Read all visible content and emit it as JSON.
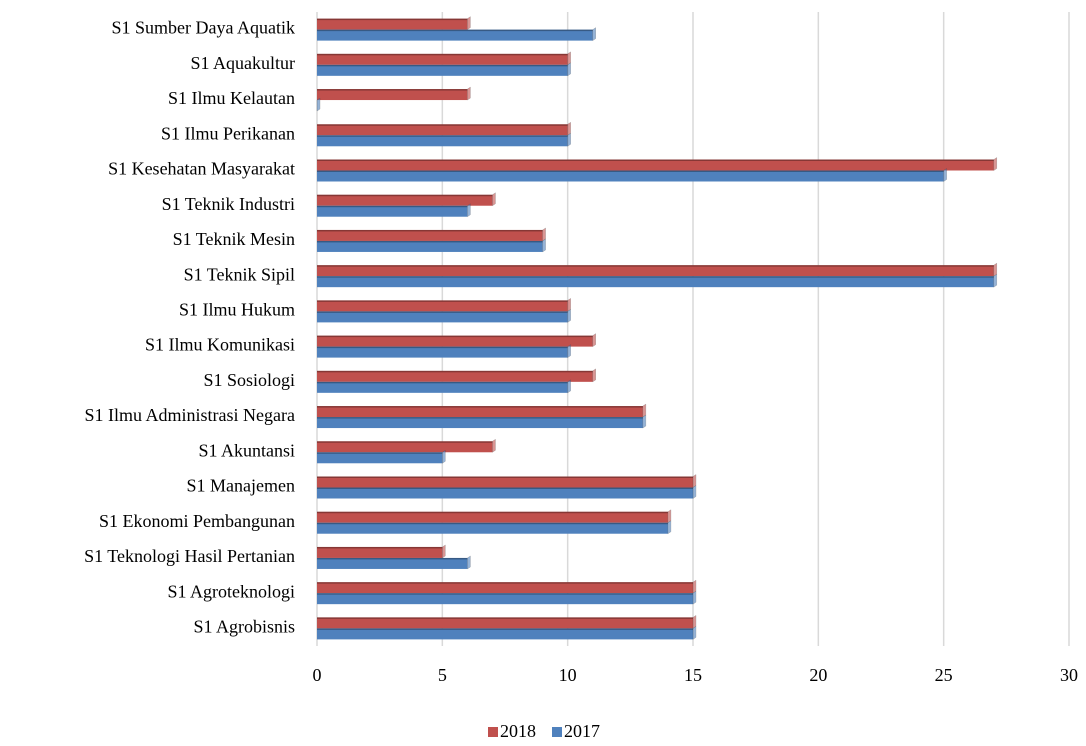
{
  "chart_data": {
    "type": "bar",
    "orientation": "horizontal",
    "categories": [
      "S1 Sumber Daya Aquatik",
      "S1 Aquakultur",
      "S1 Ilmu Kelautan",
      "S1 Ilmu Perikanan",
      "S1 Kesehatan Masyarakat",
      "S1 Teknik Industri",
      "S1 Teknik Mesin",
      "S1 Teknik Sipil",
      "S1 Ilmu Hukum",
      "S1 Ilmu Komunikasi",
      "S1 Sosiologi",
      "S1 Ilmu Administrasi Negara",
      "S1 Akuntansi",
      "S1 Manajemen",
      "S1 Ekonomi Pembangunan",
      "S1 Teknologi Hasil Pertanian",
      "S1 Agroteknologi",
      "S1 Agrobisnis"
    ],
    "series": [
      {
        "name": "2018",
        "color": "#c0504d",
        "values": [
          6,
          10,
          6,
          10,
          27,
          7,
          9,
          27,
          10,
          11,
          11,
          13,
          7,
          15,
          14,
          5,
          15,
          15
        ]
      },
      {
        "name": "2017",
        "color": "#4f81bd",
        "values": [
          11,
          10,
          0,
          10,
          25,
          6,
          9,
          27,
          10,
          10,
          10,
          13,
          5,
          15,
          14,
          6,
          15,
          15
        ]
      }
    ],
    "xlim": [
      0,
      30
    ],
    "xticks": [
      0,
      5,
      10,
      15,
      20,
      25,
      30
    ],
    "grid": true,
    "legend": "bottom"
  }
}
